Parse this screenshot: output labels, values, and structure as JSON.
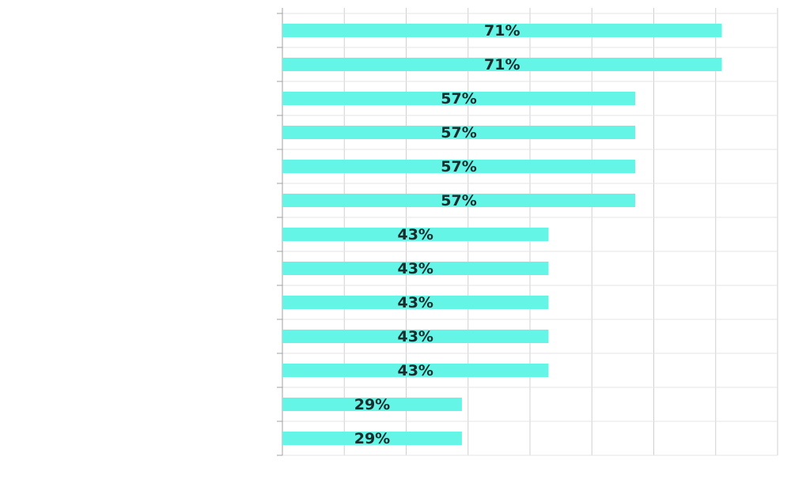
{
  "chart_data": {
    "type": "bar",
    "orientation": "horizontal",
    "categories": [
      "",
      "",
      "",
      "",
      "",
      "",
      "",
      "",
      "",
      "",
      "",
      "",
      ""
    ],
    "values": [
      71,
      71,
      57,
      57,
      57,
      57,
      43,
      43,
      43,
      43,
      43,
      29,
      29
    ],
    "data_labels": [
      "71%",
      "71%",
      "57%",
      "57%",
      "57%",
      "57%",
      "43%",
      "43%",
      "43%",
      "43%",
      "43%",
      "29%",
      "29%"
    ],
    "unit": "%",
    "xlim": [
      0,
      80
    ],
    "grid": true,
    "bar_color": "#64f5e6",
    "grid_color": "#d0d0d0",
    "label_color": "#1c2b2b"
  }
}
